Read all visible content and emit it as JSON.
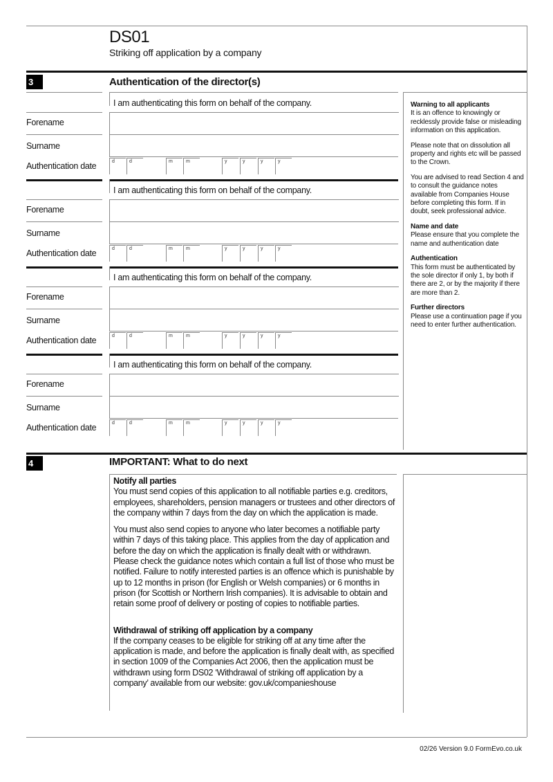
{
  "header": {
    "form_code": "DS01",
    "form_title": "Striking off application by a company"
  },
  "section3": {
    "number": "3",
    "title": "Authentication of the director(s)",
    "directors": [
      {
        "statement": "I am authenticating this form on behalf of the company.",
        "forename_label": "Forename",
        "forename_value": "",
        "surname_label": "Surname",
        "surname_value": "",
        "date_label": "Authentication date"
      },
      {
        "statement": "I am authenticating this form on behalf of the company.",
        "forename_label": "Forename",
        "forename_value": "",
        "surname_label": "Surname",
        "surname_value": "",
        "date_label": "Authentication date"
      },
      {
        "statement": "I am authenticating this form on behalf of the company.",
        "forename_label": "Forename",
        "forename_value": "",
        "surname_label": "Surname",
        "surname_value": "",
        "date_label": "Authentication date"
      },
      {
        "statement": "I am authenticating this form on behalf of the company.",
        "forename_label": "Forename",
        "forename_value": "",
        "surname_label": "Surname",
        "surname_value": "",
        "date_label": "Authentication date"
      }
    ],
    "date_placeholders": [
      "d",
      "d",
      "m",
      "m",
      "y",
      "y",
      "y",
      "y"
    ],
    "sidebar": [
      {
        "heading": "Warning to all applicants",
        "text": "It is an offence to knowingly or recklessly provide false or misleading information on this application."
      },
      {
        "heading": "",
        "text": "Please note that on dissolution all property and rights etc will be passed to the Crown."
      },
      {
        "heading": "",
        "text": "You are advised to read Section 4 and to consult the guidance notes available from Companies House before completing this form. If in doubt, seek professional advice."
      },
      {
        "heading": "Name and date",
        "text": "Please ensure that you complete the name and authentication date"
      },
      {
        "heading": "Authentication",
        "text": "This form must be authenticated by the sole director if only 1, by both if there are 2, or by the majority if there are more than 2."
      },
      {
        "heading": "Further directors",
        "text": "Please use a continuation page if you need to enter further authentication."
      }
    ]
  },
  "section4": {
    "number": "4",
    "title": "IMPORTANT: What to do next",
    "notify_heading": "Notify all parties",
    "notify_p1": "You must send copies of this application to all notifiable parties e.g. creditors, employees, shareholders, pension managers or trustees and other directors of the company within 7 days from the day on which the application is made.",
    "notify_p2": "You must also send copies to anyone who later becomes a notifiable party within 7 days of this taking place. This applies from the day of application and before the day on which the application is finally dealt with or withdrawn. Please check the guidance notes which contain a full list of those who must be notified. Failure to notify interested parties is an offence which is punishable by up to 12 months in prison (for English or Welsh companies) or 6 months in prison (for Scottish or Northern Irish companies). It is advisable to obtain and retain some proof of delivery or posting of copies to notifiable parties.",
    "withdrawal_heading": "Withdrawal of striking off application by a company",
    "withdrawal_text": "If the company ceases to be eligible for striking off at any time after the application is made, and before the application is finally dealt with, as specified in section 1009 of the Companies Act 2006, then the application must be withdrawn using form DS02 ‘Withdrawal of striking off application by a company’ available from our website: gov.uk/companieshouse"
  },
  "footer": {
    "version": "02/26 Version 9.0 FormEvo.co.uk"
  }
}
